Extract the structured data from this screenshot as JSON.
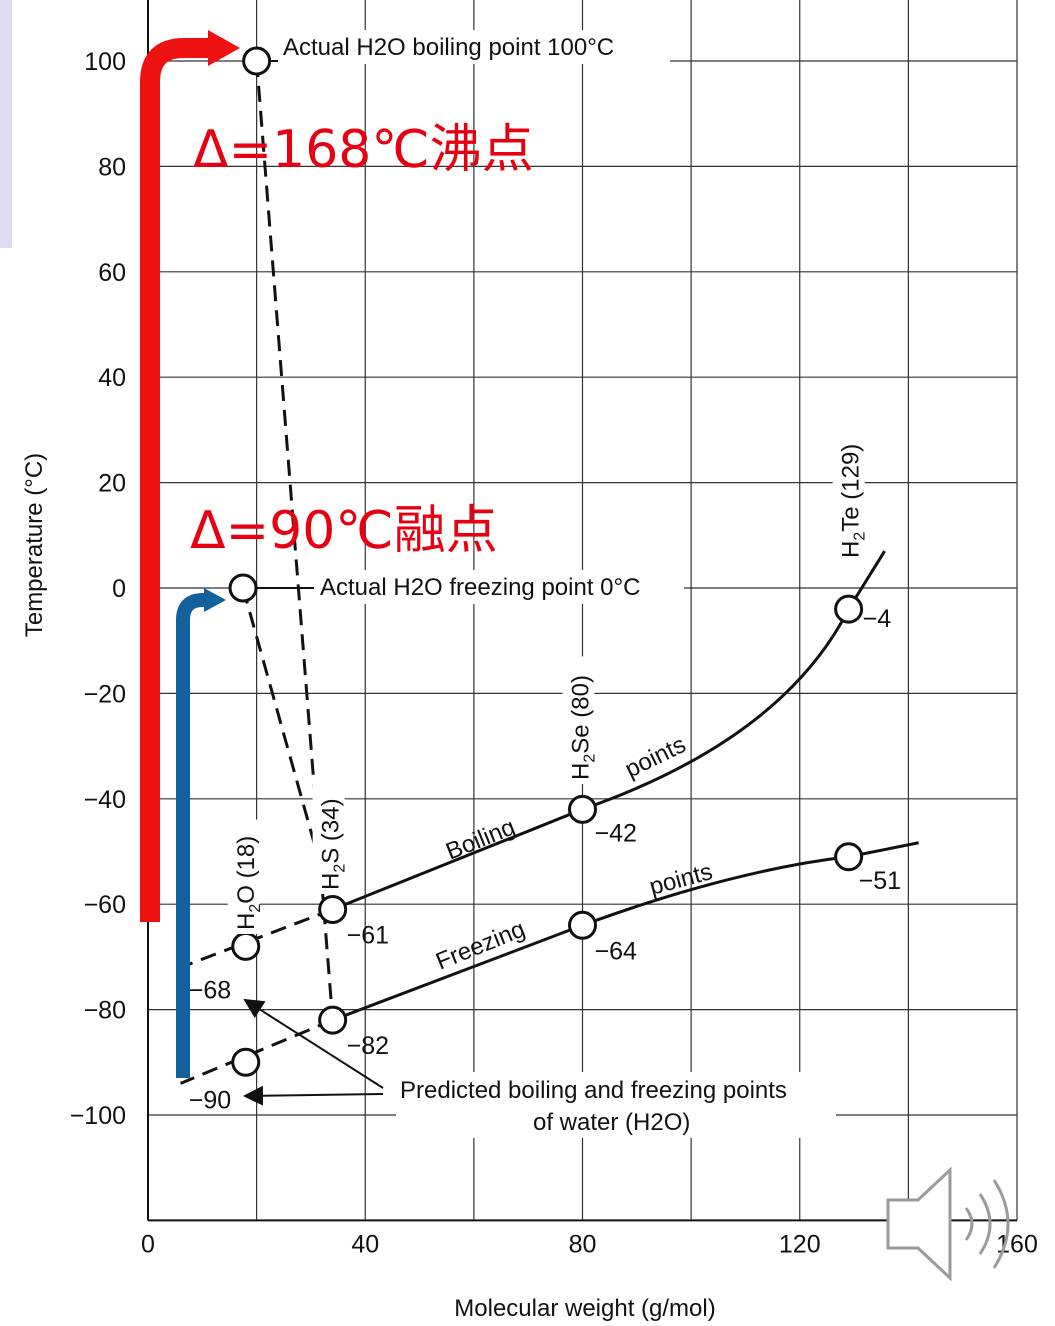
{
  "chart_data": {
    "type": "line",
    "xlabel": "Molecular weight (g/mol)",
    "ylabel": "Temperature (°C)",
    "xlim": [
      0,
      160
    ],
    "ylim": [
      -120,
      110
    ],
    "x_ticks": [
      0,
      40,
      80,
      120,
      160
    ],
    "y_ticks": [
      100,
      80,
      60,
      40,
      20,
      0,
      -20,
      -40,
      -60,
      -80,
      -100
    ],
    "series": [
      {
        "name": "Boiling points",
        "points": [
          {
            "compound": "H2S (34)",
            "x": 34,
            "y": -61
          },
          {
            "compound": "H2Se (80)",
            "x": 80,
            "y": -42
          },
          {
            "compound": "H2Te (129)",
            "x": 129,
            "y": -4
          }
        ]
      },
      {
        "name": "Freezing points",
        "points": [
          {
            "compound": "H2S (34)",
            "x": 34,
            "y": -82
          },
          {
            "compound": "H2Se (80)",
            "x": 80,
            "y": -64
          },
          {
            "compound": "H2Te (129)",
            "x": 129,
            "y": -51
          }
        ]
      }
    ],
    "predicted_water": {
      "mw": 18,
      "boiling": -68,
      "freezing": -90
    },
    "actual_water": {
      "mw": 18,
      "boiling": 100,
      "freezing": 0
    },
    "compound_labels": [
      "H2O (18)",
      "H2S (34)",
      "H2Se (80)",
      "H2Te (129)"
    ],
    "annotations": {
      "boiling_actual": "Actual H2O boiling point 100°C",
      "freezing_actual": "Actual H2O freezing point 0°C",
      "predicted_line1": "Predicted boiling and freezing points",
      "predicted_line2": "of water (H2O)",
      "boiling_curve_word1": "Boiling",
      "boiling_curve_word2": "points",
      "freezing_curve_word1": "Freezing",
      "freezing_curve_word2": "points"
    },
    "value_labels": [
      "-4",
      "-42",
      "-61",
      "-68",
      "-51",
      "-64",
      "-82",
      "-90"
    ],
    "overlays": {
      "boiling_delta": "Δ=168℃沸点",
      "freezing_delta": "Δ=90℃融点",
      "boiling_arrow_color": "#ee1111",
      "freezing_arrow_color": "#14609c"
    }
  }
}
